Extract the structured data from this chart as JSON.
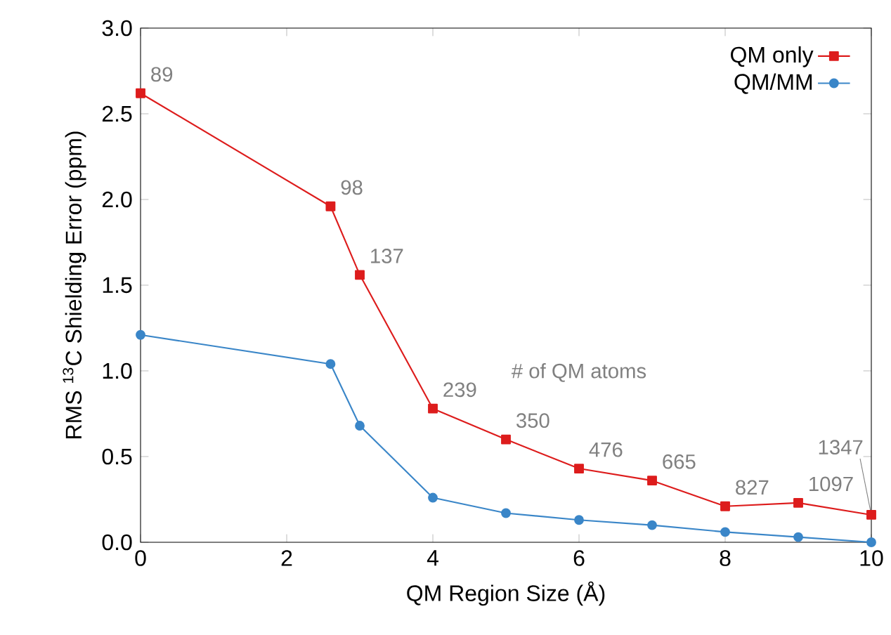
{
  "chart_data": {
    "type": "line",
    "xlabel": "QM Region Size (Å)",
    "ylabel": "RMS $^{13}$C Shielding Error (ppm)",
    "xlim": [
      0,
      10
    ],
    "ylim": [
      0,
      3.0
    ],
    "xticks": [
      0,
      2,
      4,
      6,
      8,
      10
    ],
    "yticks": [
      {
        "value": 0,
        "label": "0.0"
      },
      {
        "value": 0.5,
        "label": "0.5"
      },
      {
        "value": 1,
        "label": "1.0"
      },
      {
        "value": 1.5,
        "label": "1.5"
      },
      {
        "value": 2,
        "label": "2.0"
      },
      {
        "value": 2.5,
        "label": "2.5"
      },
      {
        "value": 3,
        "label": "3.0"
      }
    ],
    "x": [
      0,
      2.6,
      3,
      4,
      5,
      6,
      7,
      8,
      9,
      10
    ],
    "series": [
      {
        "name": "QM only",
        "color": "#dd1c1c",
        "marker": "square",
        "values": [
          2.62,
          1.96,
          1.56,
          0.78,
          0.6,
          0.43,
          0.36,
          0.21,
          0.23,
          0.16
        ]
      },
      {
        "name": "QM/MM",
        "color": "#3a86c8",
        "marker": "circle",
        "values": [
          1.21,
          1.04,
          0.68,
          0.26,
          0.17,
          0.13,
          0.1,
          0.06,
          0.03,
          0.0
        ]
      }
    ],
    "legend": "top right",
    "grid": false,
    "annotations": [
      {
        "text": "89",
        "x": 0,
        "y": 2.62
      },
      {
        "text": "98",
        "x": 2.6,
        "y": 1.96
      },
      {
        "text": "137",
        "x": 3,
        "y": 1.56
      },
      {
        "text": "239",
        "x": 4,
        "y": 0.78
      },
      {
        "text": "350",
        "x": 5,
        "y": 0.6
      },
      {
        "text": "476",
        "x": 6,
        "y": 0.43
      },
      {
        "text": "665",
        "x": 7,
        "y": 0.36
      },
      {
        "text": "827",
        "x": 8,
        "y": 0.21
      },
      {
        "text": "1097",
        "x": 9,
        "y": 0.23
      },
      {
        "text": "1347",
        "x": 10,
        "y": 0.16
      },
      "# of QM atoms"
    ]
  }
}
